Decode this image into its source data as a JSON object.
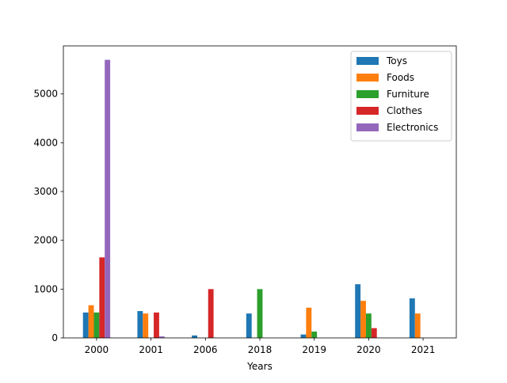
{
  "chart_data": {
    "type": "bar",
    "title": "",
    "xlabel": "Years",
    "ylabel": "",
    "categories": [
      "2000",
      "2001",
      "2006",
      "2018",
      "2019",
      "2020",
      "2021"
    ],
    "ylim": [
      0,
      5985
    ],
    "yticks": [
      0,
      1000,
      2000,
      3000,
      4000,
      5000
    ],
    "grid": false,
    "legend_position": "top-right",
    "series": [
      {
        "name": "Toys",
        "color": "#1f77b4",
        "values": [
          520,
          550,
          50,
          500,
          70,
          1100,
          810
        ]
      },
      {
        "name": "Foods",
        "color": "#ff7f0e",
        "values": [
          670,
          500,
          0,
          0,
          620,
          760,
          500
        ]
      },
      {
        "name": "Furniture",
        "color": "#2ca02c",
        "values": [
          520,
          0,
          0,
          1000,
          130,
          500,
          0
        ]
      },
      {
        "name": "Clothes",
        "color": "#d62728",
        "values": [
          1650,
          520,
          1000,
          0,
          0,
          200,
          0
        ]
      },
      {
        "name": "Electronics",
        "color": "#9467bd",
        "values": [
          5700,
          30,
          0,
          0,
          0,
          0,
          0
        ]
      }
    ]
  }
}
